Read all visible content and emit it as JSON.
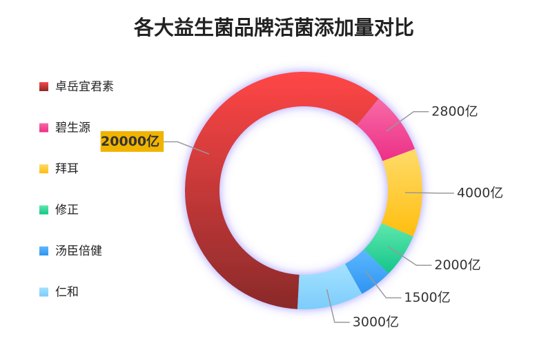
{
  "chart_data": {
    "type": "donut",
    "title": "各大益生菌品牌活菌添加量对比",
    "categories": [
      "卓岳宜君素",
      "碧生源",
      "拜耳",
      "修正",
      "汤臣倍健",
      "仁和"
    ],
    "values": [
      20000,
      2800,
      4000,
      2000,
      1500,
      3000
    ],
    "value_labels": [
      "20000亿",
      "2800亿",
      "4000亿",
      "2000亿",
      "1500亿",
      "3000亿"
    ],
    "colors": [
      [
        "#ff4646",
        "#8a2a2a"
      ],
      [
        "#f76ba5",
        "#ec2f87"
      ],
      [
        "#ffdb6a",
        "#ffbe0f"
      ],
      [
        "#5ee8ac",
        "#14c48a"
      ],
      [
        "#5cb8ff",
        "#2f93f0"
      ],
      [
        "#a3e2ff",
        "#7cccfb"
      ]
    ],
    "legend": "left"
  }
}
